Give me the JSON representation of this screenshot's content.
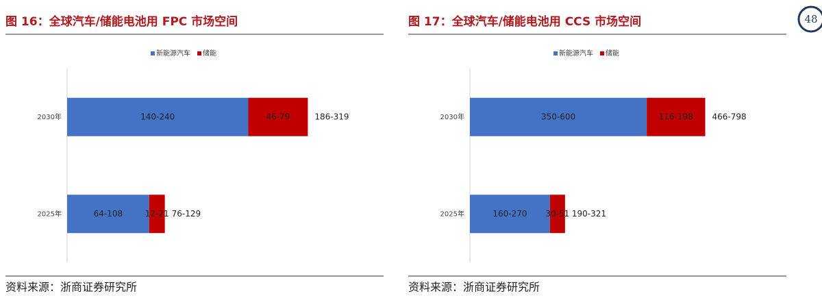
{
  "page_number": "48",
  "chart_data": [
    {
      "type": "stacked-barh",
      "title": "图 16：全球汽车/储能电池用 FPC 市场空间",
      "categories": [
        "2025年",
        "2030年"
      ],
      "series": [
        {
          "name": "新能源汽车",
          "color": "#4472c4",
          "values": [
            86,
            190
          ],
          "value_labels": [
            "64-108",
            "140-240"
          ]
        },
        {
          "name": "储能",
          "color": "#c00000",
          "values": [
            16.5,
            62.5
          ],
          "value_labels": [
            "12-21",
            "46-79"
          ]
        }
      ],
      "total_labels": [
        "76-129",
        "186-319"
      ],
      "xlim": [
        0,
        332
      ],
      "source": "资料来源：浙商证券研究所"
    },
    {
      "type": "stacked-barh",
      "title": "图 17：全球汽车/储能电池用 CCS 市场空间",
      "categories": [
        "2025年",
        "2030年"
      ],
      "series": [
        {
          "name": "新能源汽车",
          "color": "#4472c4",
          "values": [
            215,
            475
          ],
          "value_labels": [
            "160-270",
            "350-600"
          ]
        },
        {
          "name": "储能",
          "color": "#c00000",
          "values": [
            40.5,
            157
          ],
          "value_labels": [
            "30-51",
            "116-198"
          ]
        }
      ],
      "total_labels": [
        "190-321",
        "466-798"
      ],
      "xlim": [
        0,
        850
      ],
      "source": "资料来源：浙商证券研究所"
    }
  ]
}
